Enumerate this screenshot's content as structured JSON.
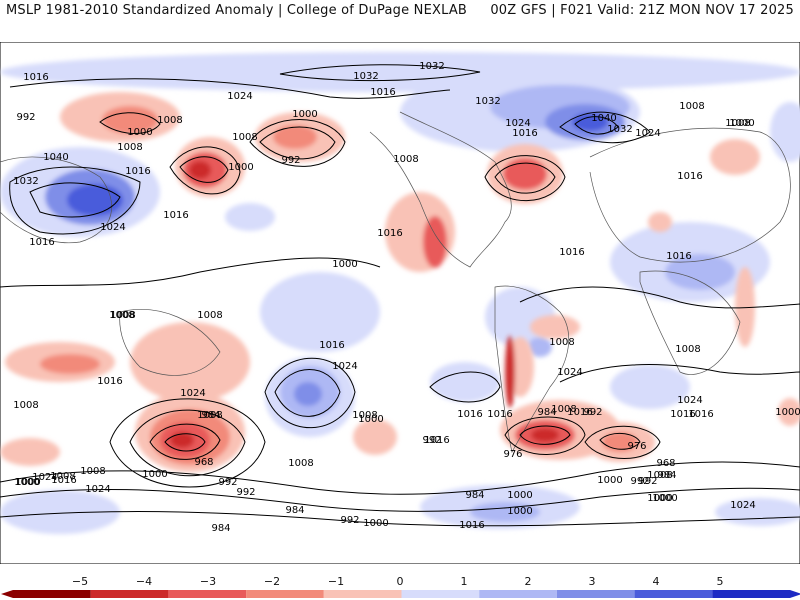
{
  "header": {
    "left_title": "MSLP 1981-2010 Standardized Anomaly | College of DuPage NEXLAB",
    "right_title": "00Z GFS | F021 Valid: 21Z MON NOV 17 2025"
  },
  "colors": {
    "neg5": "#8b0000",
    "neg4": "#cc2a2a",
    "neg3": "#e85a5a",
    "neg2": "#f28a7a",
    "neg1": "#f9c2b6",
    "pos1": "#d7dcfb",
    "pos2": "#aeb8f4",
    "pos3": "#7f8ee8",
    "pos4": "#4a5cdb",
    "pos5": "#1d2bc4",
    "contour": "#000000",
    "coast": "#555555"
  },
  "colorbar": {
    "ticks": [
      "−5",
      "−4",
      "−3",
      "−2",
      "−1",
      "0",
      "1",
      "2",
      "3",
      "4",
      "5"
    ]
  },
  "isobar_labels": [
    {
      "text": "1016"
    },
    {
      "text": "992"
    },
    {
      "text": "1000"
    },
    {
      "text": "1008"
    },
    {
      "text": "1024"
    },
    {
      "text": "1008"
    },
    {
      "text": "1000"
    },
    {
      "text": "1032"
    },
    {
      "text": "1032"
    },
    {
      "text": "1016"
    },
    {
      "text": "1032"
    },
    {
      "text": "1024"
    },
    {
      "text": "1016"
    },
    {
      "text": "1040"
    },
    {
      "text": "1032"
    },
    {
      "text": "1024"
    },
    {
      "text": "1008"
    },
    {
      "text": "1000"
    },
    {
      "text": "1040"
    },
    {
      "text": "1032"
    },
    {
      "text": "1016"
    },
    {
      "text": "1008"
    },
    {
      "text": "992"
    },
    {
      "text": "1000"
    },
    {
      "text": "1008"
    },
    {
      "text": "1016"
    },
    {
      "text": "1024"
    },
    {
      "text": "1016"
    },
    {
      "text": "1016"
    },
    {
      "text": "1008"
    },
    {
      "text": "1000"
    },
    {
      "text": "1008"
    },
    {
      "text": "1024"
    },
    {
      "text": "1016"
    },
    {
      "text": "1016"
    },
    {
      "text": "1024"
    },
    {
      "text": "1008"
    },
    {
      "text": "1008"
    },
    {
      "text": "1016"
    },
    {
      "text": "1008"
    },
    {
      "text": "1016"
    },
    {
      "text": "1008"
    },
    {
      "text": "1016"
    },
    {
      "text": "1024"
    },
    {
      "text": "1024"
    },
    {
      "text": "1016"
    },
    {
      "text": "1008"
    },
    {
      "text": "1008"
    },
    {
      "text": "1016"
    },
    {
      "text": "1000"
    },
    {
      "text": "1008"
    },
    {
      "text": "992"
    },
    {
      "text": "984"
    },
    {
      "text": "984"
    },
    {
      "text": "1000"
    },
    {
      "text": "992"
    },
    {
      "text": "1016"
    },
    {
      "text": "1008"
    },
    {
      "text": "968"
    },
    {
      "text": "992"
    },
    {
      "text": "992"
    },
    {
      "text": "1000"
    },
    {
      "text": "1008"
    },
    {
      "text": "1000"
    },
    {
      "text": "984"
    },
    {
      "text": "976"
    },
    {
      "text": "1016"
    },
    {
      "text": "984"
    },
    {
      "text": "1000"
    },
    {
      "text": "992"
    },
    {
      "text": "976"
    },
    {
      "text": "968"
    },
    {
      "text": "984"
    },
    {
      "text": "992"
    },
    {
      "text": "1000"
    },
    {
      "text": "1016"
    },
    {
      "text": "1000"
    },
    {
      "text": "1024"
    },
    {
      "text": "1016"
    },
    {
      "text": "1000"
    },
    {
      "text": "1000"
    },
    {
      "text": "1024"
    },
    {
      "text": "1016"
    },
    {
      "text": "1024"
    },
    {
      "text": "1008"
    },
    {
      "text": "1008"
    },
    {
      "text": "1016"
    },
    {
      "text": "1008"
    },
    {
      "text": "1000"
    },
    {
      "text": "992"
    },
    {
      "text": "984"
    },
    {
      "text": "1000"
    }
  ]
}
